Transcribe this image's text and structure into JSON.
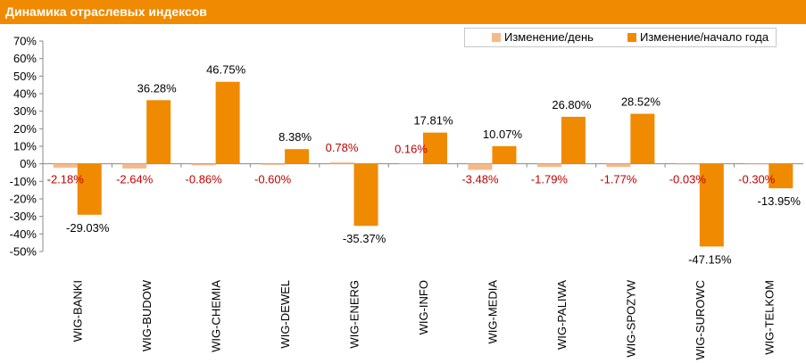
{
  "header": {
    "title": "Динамика отраслевых индексов"
  },
  "colors": {
    "header_bg": "#f08a00",
    "series_day": "#f6b98a",
    "series_year": "#f08a00",
    "day_label": "#c00000",
    "year_label": "#000000"
  },
  "chart_data": {
    "type": "bar",
    "title": "Динамика отраслевых индексов",
    "categories": [
      "WIG-BANKI",
      "WIG-BUDOW",
      "WIG-CHEMIA",
      "WIG-DEWEL",
      "WIG-ENERG",
      "WIG-INFO",
      "WIG-MEDIA",
      "WIG-PALIWA",
      "WIG-SPOZYW",
      "WIG-SUROWC",
      "WIG-TELKOM"
    ],
    "series": [
      {
        "name": "Изменение/день",
        "values": [
          -2.18,
          -2.64,
          -0.86,
          -0.6,
          0.78,
          0.16,
          -3.48,
          -1.79,
          -1.77,
          -0.03,
          -0.3
        ],
        "labels": [
          "-2.18%",
          "-2.64%",
          "-0.86%",
          "-0.60%",
          "0.78%",
          "0.16%",
          "-3.48%",
          "-1.79%",
          "-1.77%",
          "-0.03%",
          "-0.30%"
        ]
      },
      {
        "name": "Изменение/начало года",
        "values": [
          -29.03,
          36.28,
          46.75,
          8.38,
          -35.37,
          17.81,
          10.07,
          26.8,
          28.52,
          -47.15,
          -13.95
        ],
        "labels": [
          "-29.03%",
          "36.28%",
          "46.75%",
          "8.38%",
          "-35.37%",
          "17.81%",
          "10.07%",
          "26.80%",
          "28.52%",
          "-47.15%",
          "-13.95%"
        ]
      }
    ],
    "ylim": [
      -50,
      70
    ],
    "yticks": [
      70,
      60,
      50,
      40,
      30,
      20,
      10,
      0,
      -10,
      -20,
      -30,
      -40,
      -50
    ],
    "ytick_labels": [
      "70%",
      "60%",
      "50%",
      "40%",
      "30%",
      "20%",
      "10%",
      "0%",
      "-10%",
      "-20%",
      "-30%",
      "-40%",
      "-50%"
    ],
    "grid": false,
    "legend": "top-right"
  }
}
